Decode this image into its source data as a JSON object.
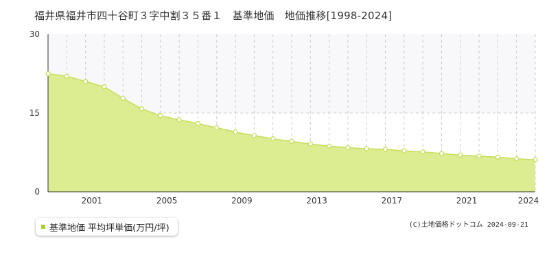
{
  "title": "福井県福井市四十谷町３字中割３５番１　基準地価　地価推移[1998-2024]",
  "copyright": "(C)土地価格ドットコム 2024-09-21",
  "colors": {
    "area_fill": "#dcec90",
    "line": "#c5de5c",
    "marker_stroke": "#c5de5c",
    "marker_fill": "#ffffff",
    "upper_band": "#f8f8fb",
    "grid": "#cccccc",
    "axis": "#333333",
    "legend_swatch": "#a8d02a"
  },
  "chart_data": {
    "type": "area",
    "title": "",
    "xlabel": "",
    "ylabel": "",
    "x": [
      1998,
      1999,
      2000,
      2001,
      2002,
      2003,
      2004,
      2005,
      2006,
      2007,
      2008,
      2009,
      2010,
      2011,
      2012,
      2013,
      2014,
      2015,
      2016,
      2017,
      2018,
      2019,
      2020,
      2021,
      2022,
      2023,
      2024
    ],
    "series": [
      {
        "name": "基準地価 平均坪単価(万円/坪)",
        "values": [
          22.5,
          22.0,
          21.0,
          20.0,
          17.8,
          15.8,
          14.5,
          13.7,
          13.0,
          12.2,
          11.4,
          10.7,
          10.1,
          9.6,
          9.1,
          8.7,
          8.4,
          8.2,
          8.1,
          7.8,
          7.6,
          7.3,
          7.0,
          6.8,
          6.6,
          6.3,
          6.1
        ]
      }
    ],
    "xlim": [
      1998,
      2024
    ],
    "ylim": [
      0,
      30
    ],
    "x_tick_labels": [
      "2001",
      "2005",
      "2009",
      "2013",
      "2017",
      "2021",
      "2024"
    ],
    "x_tick_values": [
      2001,
      2005,
      2009,
      2013,
      2017,
      2021,
      2024
    ],
    "y_tick_labels": [
      "0",
      "15",
      "30"
    ],
    "y_tick_values": [
      0,
      15,
      30
    ],
    "grid": true,
    "legend_position": "bottom-left"
  }
}
